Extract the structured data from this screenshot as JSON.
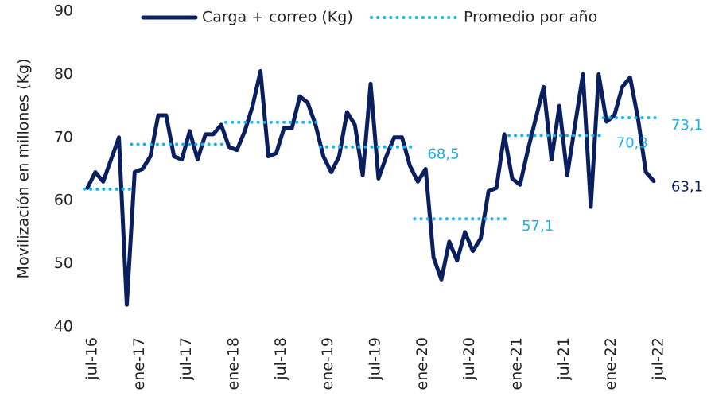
{
  "chart_data": {
    "type": "line",
    "y_label": "Movilización en millones (Kg)",
    "categories": [
      "jul-16",
      null,
      null,
      null,
      null,
      null,
      "ene-17",
      null,
      null,
      null,
      null,
      null,
      "jul-17",
      null,
      null,
      null,
      null,
      null,
      "ene-18",
      null,
      null,
      null,
      null,
      null,
      "jul-18",
      null,
      null,
      null,
      null,
      null,
      "ene-19",
      null,
      null,
      null,
      null,
      null,
      "jul-19",
      null,
      null,
      null,
      null,
      null,
      "ene-20",
      null,
      null,
      null,
      null,
      null,
      "jul-20",
      null,
      null,
      null,
      null,
      null,
      "ene-21",
      null,
      null,
      null,
      null,
      null,
      "jul-21",
      null,
      null,
      null,
      null,
      null,
      "ene-22",
      null,
      null,
      null,
      null,
      null,
      "jul-22"
    ],
    "series": [
      {
        "name": "Carga + correo (Kg)",
        "color": "#0b1f5e",
        "style": "solid",
        "values": [
          62,
          64.5,
          63,
          66.5,
          70,
          43.5,
          64.5,
          65,
          67,
          73.5,
          73.5,
          67,
          66.5,
          71,
          66.5,
          70.5,
          70.5,
          72,
          68.5,
          68,
          71,
          75,
          80.5,
          67,
          67.5,
          71.5,
          71.5,
          76.5,
          75.5,
          72,
          67,
          64.5,
          67,
          74,
          72,
          64,
          78.5,
          63.5,
          67,
          70,
          70,
          65.5,
          63,
          65,
          51,
          47.5,
          53.5,
          50.5,
          55,
          52,
          54,
          61.5,
          62,
          70.5,
          63.5,
          62.5,
          68,
          73,
          78,
          66.5,
          75,
          64,
          72,
          80,
          59,
          80,
          72.5,
          73.5,
          78,
          79.5,
          73,
          64.5,
          63.1
        ],
        "value_labels": [
          null,
          null,
          null,
          null,
          null,
          null,
          null,
          null,
          null,
          null,
          null,
          null,
          null,
          null,
          null,
          null,
          null,
          null,
          null,
          null,
          null,
          null,
          null,
          null,
          null,
          null,
          null,
          null,
          null,
          null,
          null,
          null,
          null,
          null,
          null,
          null,
          null,
          null,
          null,
          null,
          null,
          null,
          null,
          null,
          null,
          null,
          null,
          null,
          null,
          null,
          null,
          null,
          null,
          null,
          null,
          null,
          null,
          null,
          null,
          null,
          null,
          null,
          null,
          null,
          null,
          null,
          null,
          null,
          null,
          null,
          null,
          null,
          "63,1"
        ]
      },
      {
        "name": "Promedio por año",
        "color": "#1ab0e8",
        "style": "dotted",
        "values": [
          61.8,
          61.8,
          61.8,
          61.8,
          61.8,
          61.8,
          68.9,
          68.9,
          68.9,
          68.9,
          68.9,
          68.9,
          68.9,
          68.9,
          68.9,
          68.9,
          68.9,
          68.9,
          72.4,
          72.4,
          72.4,
          72.4,
          72.4,
          72.4,
          72.4,
          72.4,
          72.4,
          72.4,
          72.4,
          72.4,
          68.5,
          68.5,
          68.5,
          68.5,
          68.5,
          68.5,
          68.5,
          68.5,
          68.5,
          68.5,
          68.5,
          68.5,
          57.1,
          57.1,
          57.1,
          57.1,
          57.1,
          57.1,
          57.1,
          57.1,
          57.1,
          57.1,
          57.1,
          57.1,
          70.3,
          70.3,
          70.3,
          70.3,
          70.3,
          70.3,
          70.3,
          70.3,
          70.3,
          70.3,
          70.3,
          70.3,
          73.1,
          73.1,
          73.1,
          73.1,
          73.1,
          73.1,
          73.1
        ],
        "value_labels": [
          null,
          null,
          null,
          null,
          null,
          null,
          null,
          null,
          null,
          null,
          null,
          null,
          null,
          null,
          null,
          null,
          null,
          null,
          null,
          null,
          null,
          null,
          null,
          null,
          null,
          null,
          null,
          null,
          null,
          null,
          null,
          null,
          null,
          null,
          null,
          null,
          null,
          null,
          null,
          null,
          null,
          "68,5",
          null,
          null,
          null,
          null,
          null,
          null,
          null,
          null,
          null,
          null,
          null,
          "57,1",
          null,
          null,
          null,
          null,
          null,
          null,
          null,
          null,
          null,
          null,
          null,
          "70,3",
          null,
          null,
          null,
          null,
          null,
          null,
          "73,1"
        ]
      }
    ],
    "ylim": [
      40,
      90
    ],
    "yticks": [
      40,
      50,
      60,
      70,
      80,
      90
    ],
    "grid": false
  }
}
